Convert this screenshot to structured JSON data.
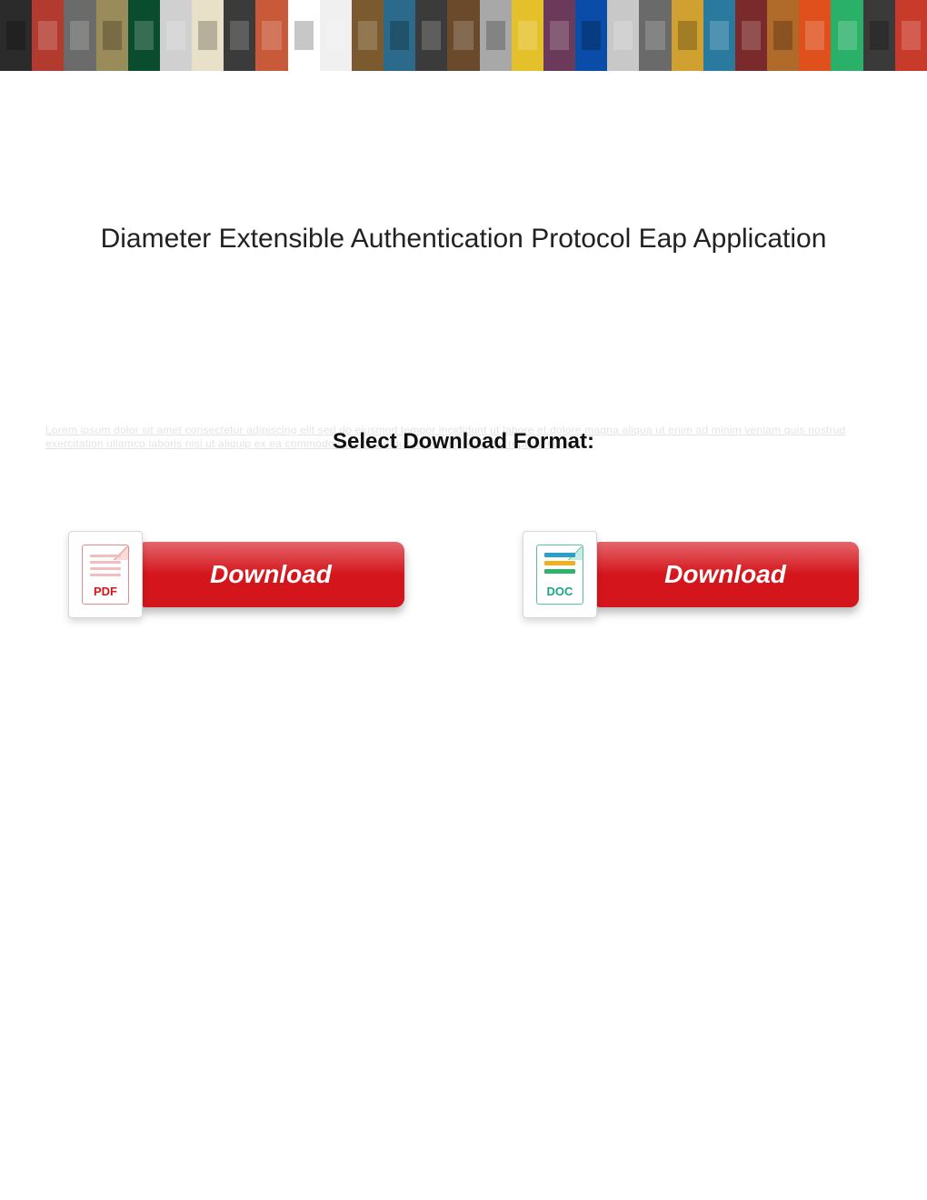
{
  "banner": {
    "tile_colors": [
      "#2b2b2b",
      "#b23a2e",
      "#6b6b6b",
      "#9a8b5a",
      "#0a4d2e",
      "#d0d0d0",
      "#e8e0c8",
      "#3b3b3b",
      "#c85a3a",
      "#ffffff",
      "#f0f0f0",
      "#7a5a2e",
      "#2b6a8a",
      "#3b3b3b",
      "#6a4a2a",
      "#a8a8a8",
      "#e4c02a",
      "#6b3a5a",
      "#0a4da8",
      "#c8c8c8",
      "#6a6a6a",
      "#d0a030",
      "#2a7aa0",
      "#7a2a2a",
      "#b06a2a",
      "#e0501c",
      "#2bb06a",
      "#3a3a3a",
      "#c83a2a"
    ]
  },
  "title": "Diameter Extensible Authentication Protocol Eap Application",
  "format_label": "Select Download Format:",
  "ghost_text": "Lorem ipsum dolor sit amet consectetur adipiscing elit sed do eiusmod tempor incididunt ut labore et dolore magna aliqua ut enim ad minim veniam quis nostrud exercitation ullamco laboris nisi ut aliquip ex ea commodo consequat duis aute irure dolor in reprehenderit",
  "buttons": {
    "pill_bg": "#d4151c",
    "pill_shadow": "rgba(0,0,0,0.28)",
    "label": "Download",
    "pdf": {
      "badge_text": "PDF",
      "badge_color": "#d4151c",
      "icon_border": "#e08a8a"
    },
    "doc": {
      "badge_text": "DOC",
      "badge_color": "#1fa388",
      "icon_border": "#5fbfa6",
      "bar1_color": "#2aa0c8",
      "bar2_color": "#f2b01e",
      "bar3_color": "#2fb56a"
    }
  }
}
